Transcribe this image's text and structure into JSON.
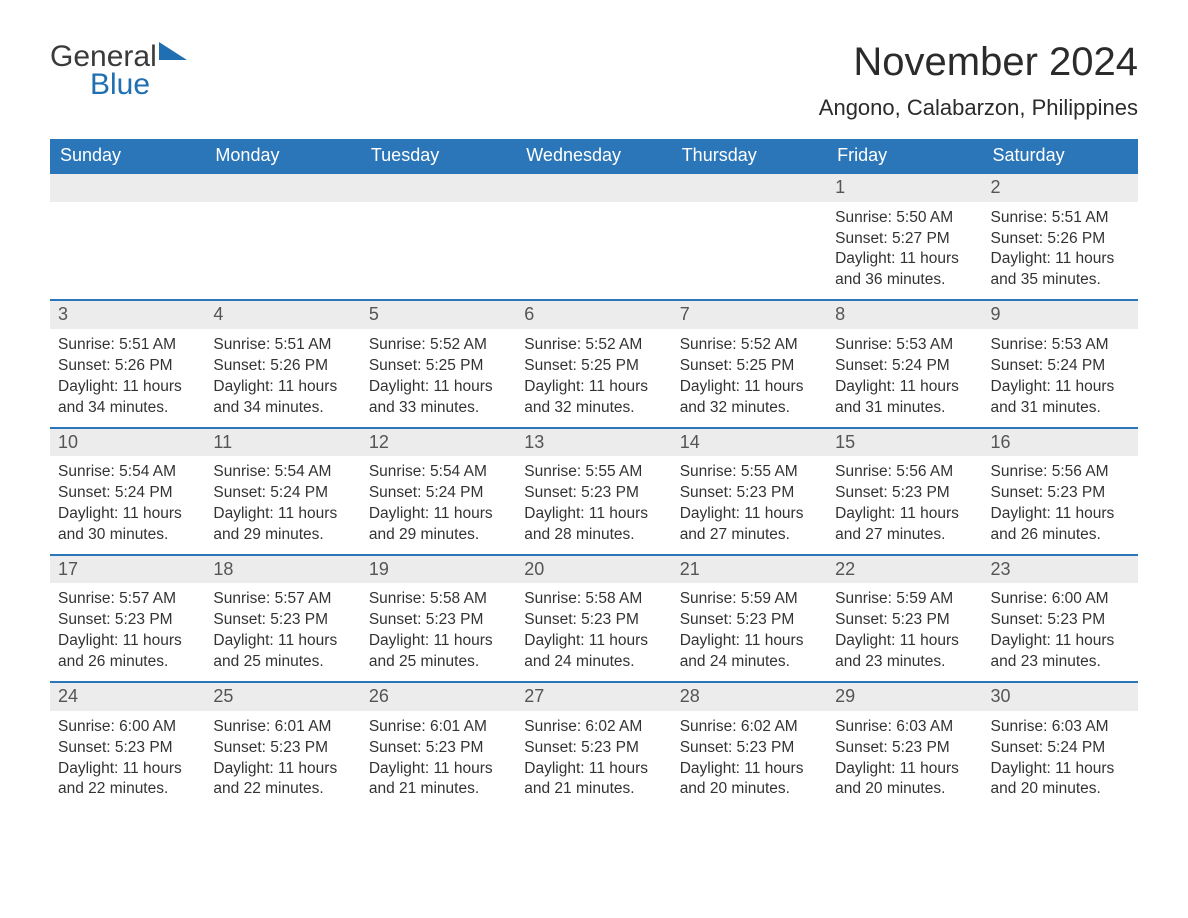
{
  "logo": {
    "general": "General",
    "blue": "Blue"
  },
  "title": "November 2024",
  "location": "Angono, Calabarzon, Philippines",
  "header_bg": "#2b76b8",
  "header_fg": "#ffffff",
  "daynum_bg": "#ececec",
  "weekdays": [
    "Sunday",
    "Monday",
    "Tuesday",
    "Wednesday",
    "Thursday",
    "Friday",
    "Saturday"
  ],
  "weeks": [
    [
      null,
      null,
      null,
      null,
      null,
      {
        "n": "1",
        "sunrise": "5:50 AM",
        "sunset": "5:27 PM",
        "dl1": "Daylight: 11 hours",
        "dl2": "and 36 minutes."
      },
      {
        "n": "2",
        "sunrise": "5:51 AM",
        "sunset": "5:26 PM",
        "dl1": "Daylight: 11 hours",
        "dl2": "and 35 minutes."
      }
    ],
    [
      {
        "n": "3",
        "sunrise": "5:51 AM",
        "sunset": "5:26 PM",
        "dl1": "Daylight: 11 hours",
        "dl2": "and 34 minutes."
      },
      {
        "n": "4",
        "sunrise": "5:51 AM",
        "sunset": "5:26 PM",
        "dl1": "Daylight: 11 hours",
        "dl2": "and 34 minutes."
      },
      {
        "n": "5",
        "sunrise": "5:52 AM",
        "sunset": "5:25 PM",
        "dl1": "Daylight: 11 hours",
        "dl2": "and 33 minutes."
      },
      {
        "n": "6",
        "sunrise": "5:52 AM",
        "sunset": "5:25 PM",
        "dl1": "Daylight: 11 hours",
        "dl2": "and 32 minutes."
      },
      {
        "n": "7",
        "sunrise": "5:52 AM",
        "sunset": "5:25 PM",
        "dl1": "Daylight: 11 hours",
        "dl2": "and 32 minutes."
      },
      {
        "n": "8",
        "sunrise": "5:53 AM",
        "sunset": "5:24 PM",
        "dl1": "Daylight: 11 hours",
        "dl2": "and 31 minutes."
      },
      {
        "n": "9",
        "sunrise": "5:53 AM",
        "sunset": "5:24 PM",
        "dl1": "Daylight: 11 hours",
        "dl2": "and 31 minutes."
      }
    ],
    [
      {
        "n": "10",
        "sunrise": "5:54 AM",
        "sunset": "5:24 PM",
        "dl1": "Daylight: 11 hours",
        "dl2": "and 30 minutes."
      },
      {
        "n": "11",
        "sunrise": "5:54 AM",
        "sunset": "5:24 PM",
        "dl1": "Daylight: 11 hours",
        "dl2": "and 29 minutes."
      },
      {
        "n": "12",
        "sunrise": "5:54 AM",
        "sunset": "5:24 PM",
        "dl1": "Daylight: 11 hours",
        "dl2": "and 29 minutes."
      },
      {
        "n": "13",
        "sunrise": "5:55 AM",
        "sunset": "5:23 PM",
        "dl1": "Daylight: 11 hours",
        "dl2": "and 28 minutes."
      },
      {
        "n": "14",
        "sunrise": "5:55 AM",
        "sunset": "5:23 PM",
        "dl1": "Daylight: 11 hours",
        "dl2": "and 27 minutes."
      },
      {
        "n": "15",
        "sunrise": "5:56 AM",
        "sunset": "5:23 PM",
        "dl1": "Daylight: 11 hours",
        "dl2": "and 27 minutes."
      },
      {
        "n": "16",
        "sunrise": "5:56 AM",
        "sunset": "5:23 PM",
        "dl1": "Daylight: 11 hours",
        "dl2": "and 26 minutes."
      }
    ],
    [
      {
        "n": "17",
        "sunrise": "5:57 AM",
        "sunset": "5:23 PM",
        "dl1": "Daylight: 11 hours",
        "dl2": "and 26 minutes."
      },
      {
        "n": "18",
        "sunrise": "5:57 AM",
        "sunset": "5:23 PM",
        "dl1": "Daylight: 11 hours",
        "dl2": "and 25 minutes."
      },
      {
        "n": "19",
        "sunrise": "5:58 AM",
        "sunset": "5:23 PM",
        "dl1": "Daylight: 11 hours",
        "dl2": "and 25 minutes."
      },
      {
        "n": "20",
        "sunrise": "5:58 AM",
        "sunset": "5:23 PM",
        "dl1": "Daylight: 11 hours",
        "dl2": "and 24 minutes."
      },
      {
        "n": "21",
        "sunrise": "5:59 AM",
        "sunset": "5:23 PM",
        "dl1": "Daylight: 11 hours",
        "dl2": "and 24 minutes."
      },
      {
        "n": "22",
        "sunrise": "5:59 AM",
        "sunset": "5:23 PM",
        "dl1": "Daylight: 11 hours",
        "dl2": "and 23 minutes."
      },
      {
        "n": "23",
        "sunrise": "6:00 AM",
        "sunset": "5:23 PM",
        "dl1": "Daylight: 11 hours",
        "dl2": "and 23 minutes."
      }
    ],
    [
      {
        "n": "24",
        "sunrise": "6:00 AM",
        "sunset": "5:23 PM",
        "dl1": "Daylight: 11 hours",
        "dl2": "and 22 minutes."
      },
      {
        "n": "25",
        "sunrise": "6:01 AM",
        "sunset": "5:23 PM",
        "dl1": "Daylight: 11 hours",
        "dl2": "and 22 minutes."
      },
      {
        "n": "26",
        "sunrise": "6:01 AM",
        "sunset": "5:23 PM",
        "dl1": "Daylight: 11 hours",
        "dl2": "and 21 minutes."
      },
      {
        "n": "27",
        "sunrise": "6:02 AM",
        "sunset": "5:23 PM",
        "dl1": "Daylight: 11 hours",
        "dl2": "and 21 minutes."
      },
      {
        "n": "28",
        "sunrise": "6:02 AM",
        "sunset": "5:23 PM",
        "dl1": "Daylight: 11 hours",
        "dl2": "and 20 minutes."
      },
      {
        "n": "29",
        "sunrise": "6:03 AM",
        "sunset": "5:23 PM",
        "dl1": "Daylight: 11 hours",
        "dl2": "and 20 minutes."
      },
      {
        "n": "30",
        "sunrise": "6:03 AM",
        "sunset": "5:24 PM",
        "dl1": "Daylight: 11 hours",
        "dl2": "and 20 minutes."
      }
    ]
  ],
  "labels": {
    "sunrise": "Sunrise: ",
    "sunset": "Sunset: "
  }
}
